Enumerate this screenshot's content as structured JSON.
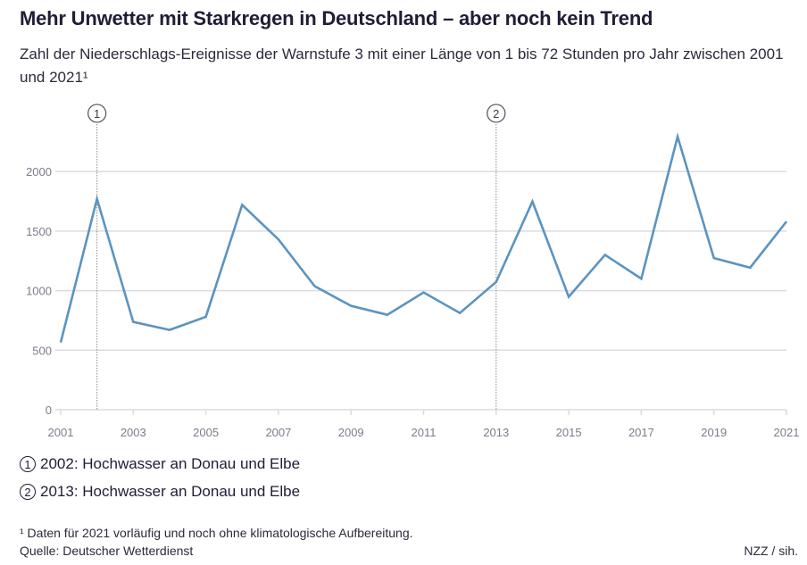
{
  "header": {
    "title": "Mehr Unwetter mit Starkregen in Deutschland – aber noch kein Trend",
    "subtitle": "Zahl der Niederschlags-Ereignisse der Warnstufe 3 mit einer Länge von 1 bis 72 Stunden pro Jahr zwischen 2001 und 2021¹"
  },
  "chart_data": {
    "type": "line",
    "title": "Mehr Unwetter mit Starkregen in Deutschland – aber noch kein Trend",
    "xlabel": "",
    "ylabel": "",
    "x": [
      2001,
      2002,
      2003,
      2004,
      2005,
      2006,
      2007,
      2008,
      2009,
      2010,
      2011,
      2012,
      2013,
      2014,
      2015,
      2016,
      2017,
      2018,
      2019,
      2020,
      2021
    ],
    "series": [
      {
        "name": "Niederschlags-Ereignisse Warnstufe 3",
        "color": "#5b94c0",
        "values": [
          565,
          1770,
          737,
          670,
          780,
          1720,
          1430,
          1037,
          872,
          797,
          985,
          812,
          1073,
          1748,
          948,
          1300,
          1100,
          2293,
          1273,
          1193,
          1580
        ]
      }
    ],
    "ylim": [
      0,
      2300
    ],
    "xlim": [
      2001,
      2021
    ],
    "yticks": [
      0,
      500,
      1000,
      1500,
      2000
    ],
    "ytick_labels": [
      "0",
      "500",
      "1000",
      "1500",
      "2000"
    ],
    "xticks": [
      2001,
      2003,
      2005,
      2007,
      2009,
      2011,
      2013,
      2015,
      2017,
      2019,
      2021
    ],
    "xtick_labels": [
      "2001",
      "2003",
      "2005",
      "2007",
      "2009",
      "2011",
      "2013",
      "2015",
      "2017",
      "2019",
      "2021"
    ],
    "grid": true,
    "annotations": [
      {
        "marker": "1",
        "x": 2002,
        "text": "2002: Hochwasser an Donau und Elbe"
      },
      {
        "marker": "2",
        "x": 2013,
        "text": "2013: Hochwasser an Donau und Elbe"
      }
    ]
  },
  "notes": [
    {
      "marker": "1",
      "text": "2002: Hochwasser an Donau und Elbe"
    },
    {
      "marker": "2",
      "text": "2013: Hochwasser an Donau und Elbe"
    }
  ],
  "footer": {
    "footnote": "¹ Daten für 2021 vorläufig und noch ohne klimatologische Aufbereitung.",
    "source": "Quelle: Deutscher Wetterdienst",
    "credit": "NZZ / sih."
  },
  "colors": {
    "line": "#5b94c0",
    "grid": "#dcdbe3",
    "text": "#1f1d36",
    "tick": "#7d7b8a"
  }
}
